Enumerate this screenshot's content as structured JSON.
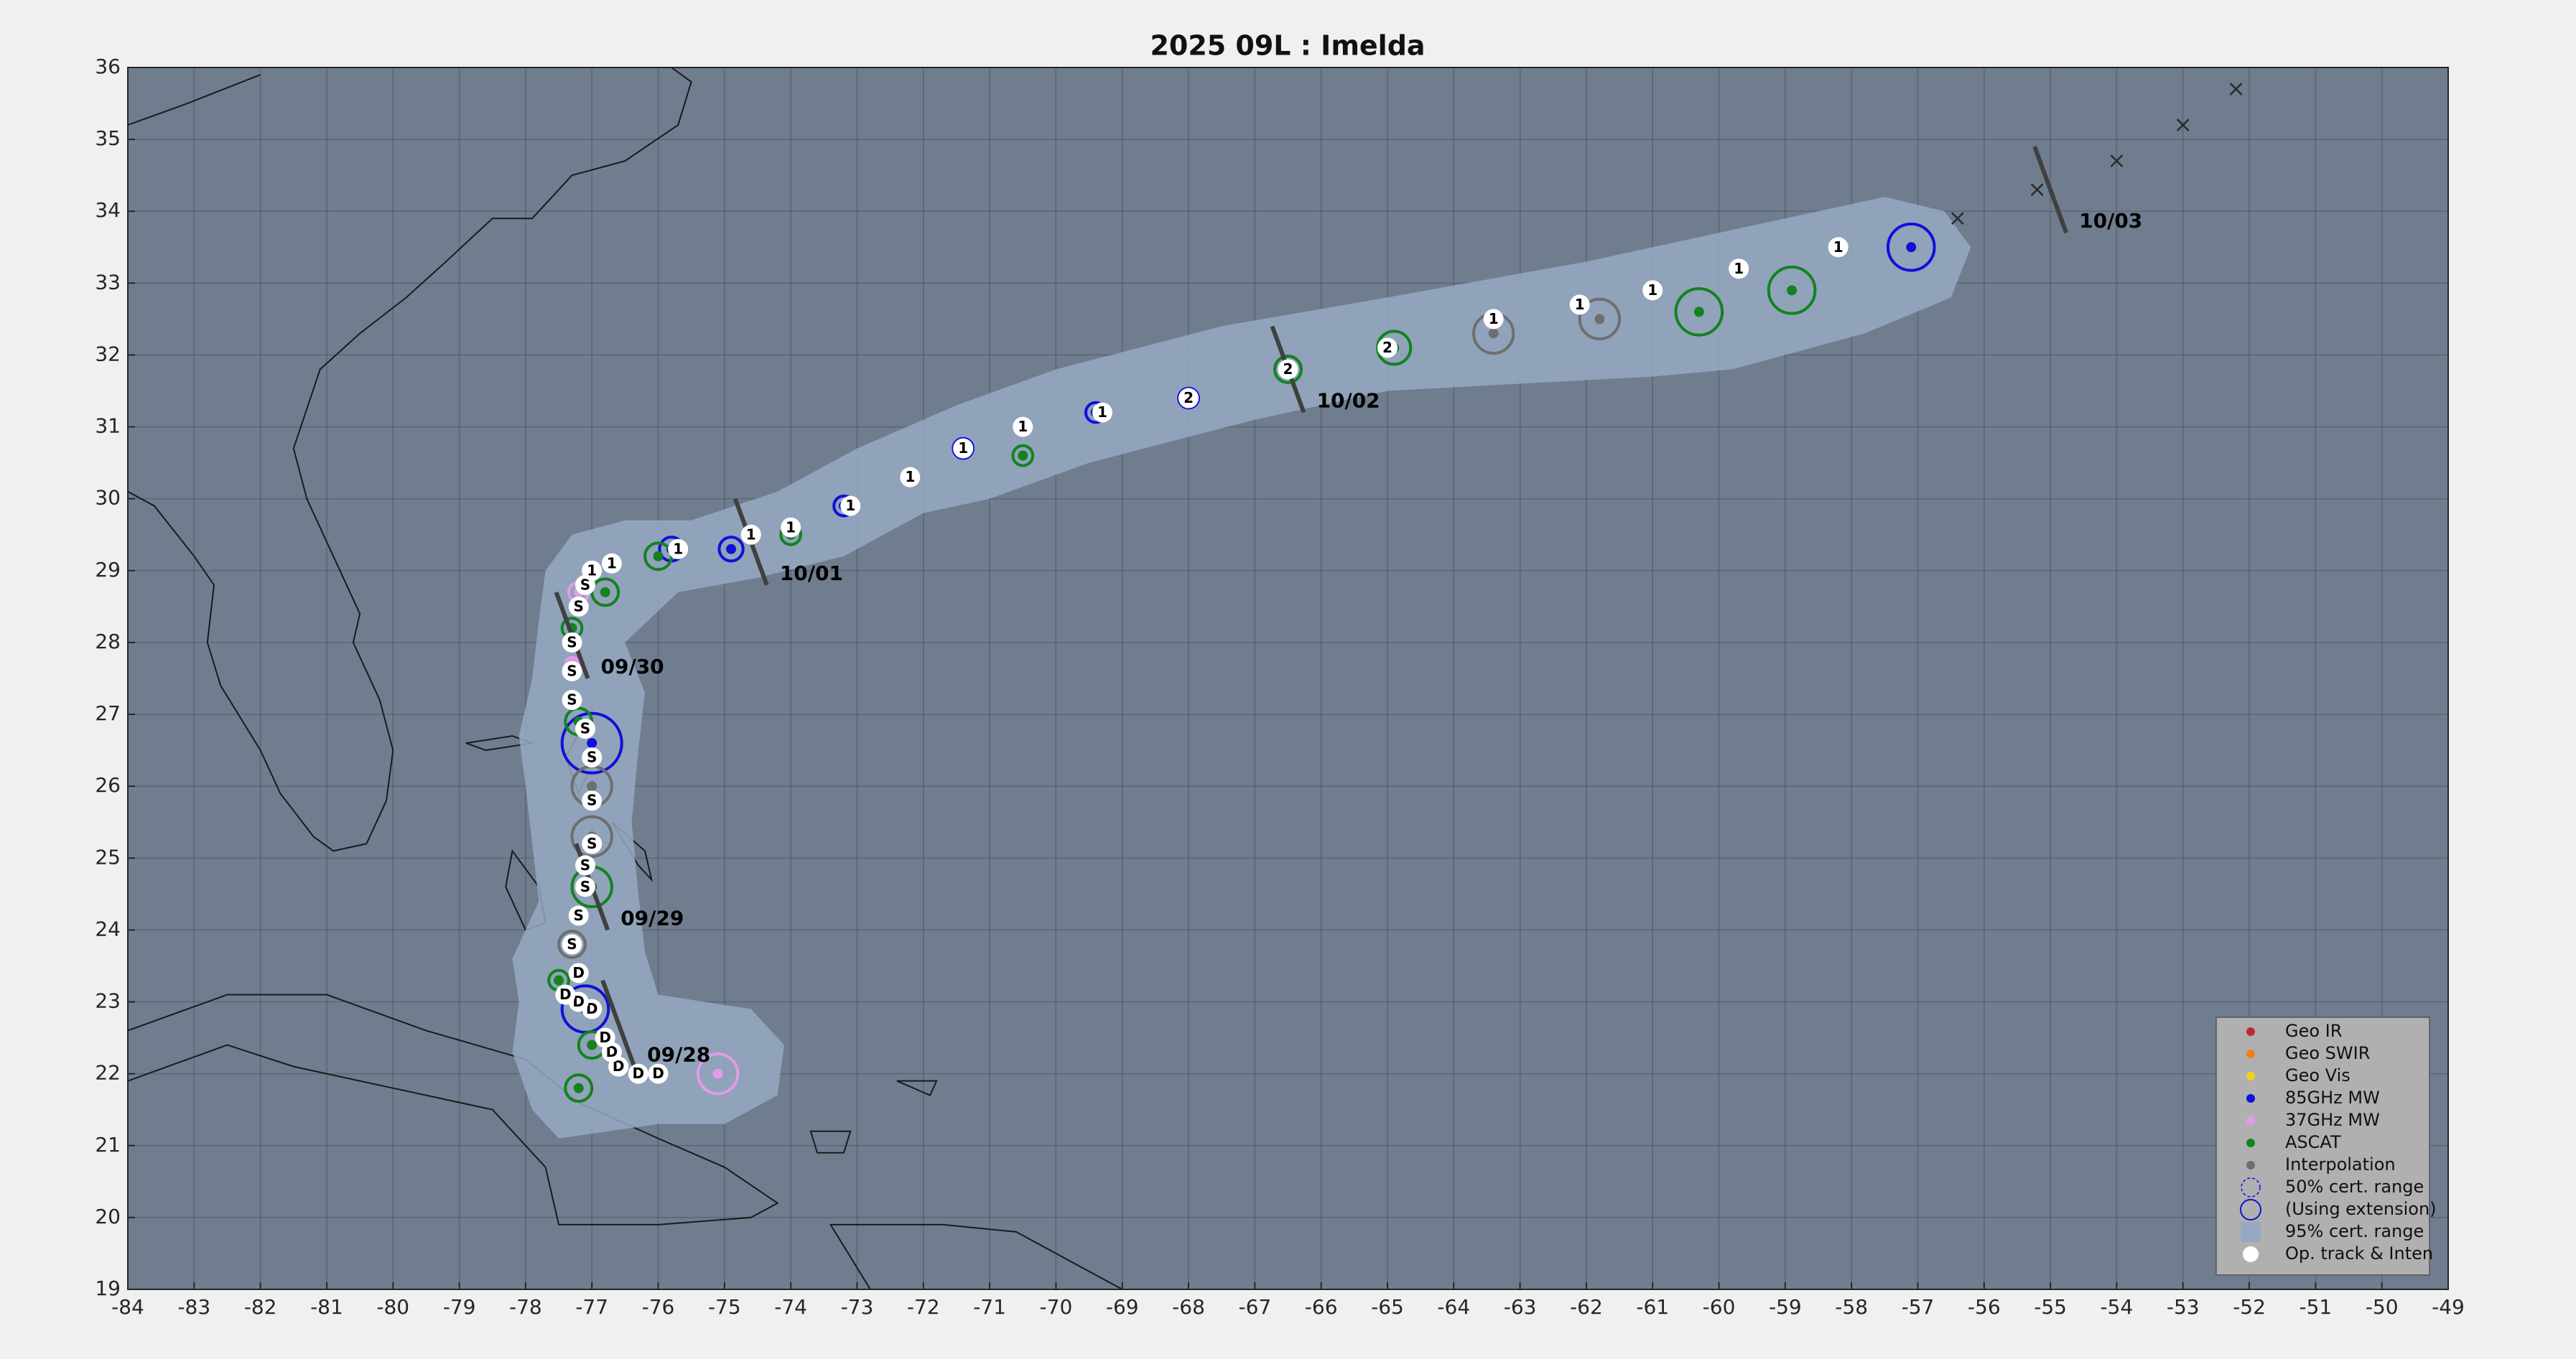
{
  "chart_data": {
    "type": "track",
    "title": "2025  09L :  Imelda",
    "xlim": [
      -84,
      -49
    ],
    "ylim": [
      19,
      36
    ],
    "xticks": [
      -84,
      -83,
      -82,
      -81,
      -80,
      -79,
      -78,
      -77,
      -76,
      -75,
      -74,
      -73,
      -72,
      -71,
      -70,
      -69,
      -68,
      -67,
      -66,
      -65,
      -64,
      -63,
      -62,
      -61,
      -60,
      -59,
      -58,
      -57,
      -56,
      -55,
      -54,
      -53,
      -52,
      -51,
      -50,
      -49
    ],
    "yticks": [
      19,
      20,
      21,
      22,
      23,
      24,
      25,
      26,
      27,
      28,
      29,
      30,
      31,
      32,
      33,
      34,
      35,
      36
    ],
    "grid": true,
    "legend": "lower right",
    "cone": {
      "name": "95% cert. range",
      "color": "#97a9c2",
      "x": [
        -77.5,
        -76.0,
        -75.0,
        -74.2,
        -74.1,
        -74.6,
        -76.0,
        -76.2,
        -76.3,
        -76.4,
        -76.3,
        -76.2,
        -76.5,
        -75.7,
        -74.5,
        -73.2,
        -72.0,
        -71.0,
        -69.5,
        -67.0,
        -65.0,
        -63.0,
        -61.0,
        -59.8,
        -57.8,
        -56.5,
        -56.2,
        -56.6,
        -57.5,
        -59.0,
        -62.0,
        -65.0,
        -67.5,
        -70.0,
        -71.5,
        -73.0,
        -74.2,
        -75.5,
        -76.5,
        -77.3,
        -77.7,
        -77.8,
        -77.9,
        -78.1,
        -78.0,
        -77.9,
        -77.8,
        -78.2,
        -78.1,
        -78.2,
        -77.9
      ],
      "y": [
        21.1,
        21.3,
        21.3,
        21.7,
        22.4,
        22.9,
        23.1,
        23.7,
        24.5,
        25.5,
        26.5,
        27.3,
        28.0,
        28.7,
        28.9,
        29.2,
        29.8,
        30.0,
        30.5,
        31.1,
        31.5,
        31.6,
        31.7,
        31.8,
        32.3,
        32.8,
        33.5,
        34.0,
        34.2,
        33.9,
        33.3,
        32.8,
        32.4,
        31.8,
        31.3,
        30.7,
        30.1,
        29.7,
        29.7,
        29.5,
        29.0,
        28.3,
        27.5,
        26.7,
        26.0,
        25.2,
        24.4,
        23.6,
        23.0,
        22.3,
        21.5
      ]
    },
    "cert_50": {
      "name": "50% cert. range"
    },
    "cert_ext": {
      "name": "(Using extension)"
    },
    "series": [
      {
        "name": "Geo IR",
        "color": "#c0282d",
        "x": [],
        "y": [],
        "r": []
      },
      {
        "name": "Geo SWIR",
        "color": "#f07f1e",
        "x": [],
        "y": [],
        "r": []
      },
      {
        "name": "Geo Vis",
        "color": "#f2d21b",
        "x": [],
        "y": [],
        "r": []
      },
      {
        "name": "85GHz MW",
        "color": "#1010d8",
        "x": [
          -77.0,
          -77.1,
          -75.8,
          -74.9,
          -73.2,
          -71.4,
          -69.4,
          -68.0,
          -57.1
        ],
        "y": [
          26.6,
          22.9,
          29.3,
          29.3,
          29.9,
          30.7,
          31.2,
          31.4,
          33.5
        ],
        "r": [
          0.45,
          0.35,
          0.18,
          0.18,
          0.15,
          0.15,
          0.15,
          0.15,
          0.35
        ]
      },
      {
        "name": "37GHz MW",
        "color": "#e29be8",
        "x": [
          -75.1,
          -77.2,
          -77.3
        ],
        "y": [
          22.0,
          28.7,
          27.7
        ],
        "r": [
          0.3,
          0.15,
          0.1
        ]
      },
      {
        "name": "ASCAT",
        "color": "#13821f",
        "x": [
          -77.0,
          -77.2,
          -77.3,
          -76.8,
          -76.0,
          -74.0,
          -70.5,
          -66.5,
          -64.9,
          -60.3,
          -58.9,
          -77.2,
          -77.0,
          -77.5
        ],
        "y": [
          24.6,
          26.9,
          28.2,
          28.7,
          29.2,
          29.5,
          30.6,
          31.8,
          32.1,
          32.6,
          32.9,
          21.8,
          22.4,
          23.3
        ],
        "r": [
          0.3,
          0.2,
          0.15,
          0.2,
          0.2,
          0.15,
          0.15,
          0.2,
          0.25,
          0.35,
          0.35,
          0.2,
          0.2,
          0.15
        ]
      },
      {
        "name": "Interpolation",
        "color": "#6e6e6e",
        "x": [
          -77.0,
          -77.0,
          -63.4,
          -61.8,
          -77.3
        ],
        "y": [
          26.0,
          25.3,
          32.3,
          32.5,
          23.8
        ],
        "r": [
          0.3,
          0.3,
          0.3,
          0.3,
          0.2
        ]
      }
    ],
    "track": {
      "name": "Op. track & Inten",
      "color": "#ffffff",
      "x": [
        -76.0,
        -76.3,
        -76.6,
        -76.7,
        -76.8,
        -77.0,
        -77.2,
        -77.4,
        -77.2,
        -77.3,
        -77.2,
        -77.1,
        -77.1,
        -77.0,
        -77.0,
        -77.0,
        -77.1,
        -77.3,
        -77.3,
        -77.3,
        -77.2,
        -77.1,
        -77.0,
        -76.7,
        -75.7,
        -74.6,
        -74.0,
        -73.1,
        -72.2,
        -71.4,
        -70.5,
        -69.3,
        -68.0,
        -66.5,
        -65.0,
        -63.4,
        -62.1,
        -61.0,
        -59.7,
        -58.2
      ],
      "y": [
        22.0,
        22.0,
        22.1,
        22.3,
        22.5,
        22.9,
        23.0,
        23.1,
        23.4,
        23.8,
        24.2,
        24.6,
        24.9,
        25.2,
        25.8,
        26.4,
        26.8,
        27.2,
        27.6,
        28.0,
        28.5,
        28.8,
        29.0,
        29.1,
        29.3,
        29.5,
        29.6,
        29.9,
        30.3,
        30.7,
        31.0,
        31.2,
        31.4,
        31.8,
        32.1,
        32.5,
        32.7,
        32.9,
        33.2,
        33.5
      ],
      "labels": [
        "D",
        "D",
        "D",
        "D",
        "D",
        "D",
        "D",
        "D",
        "D",
        "S",
        "S",
        "S",
        "S",
        "S",
        "S",
        "S",
        "S",
        "S",
        "S",
        "S",
        "S",
        "S",
        "1",
        "1",
        "1",
        "1",
        "1",
        "1",
        "1",
        "1",
        "1",
        "1",
        "2",
        "2",
        "2",
        "1",
        "1",
        "1",
        "1",
        "1"
      ]
    },
    "forecast": {
      "x": [
        -56.4,
        -55.2,
        -54.0,
        -53.0,
        -52.2
      ],
      "y": [
        33.9,
        34.3,
        34.7,
        35.2,
        35.7
      ]
    },
    "annotations": [
      {
        "text": "09/28",
        "x": -76.6,
        "y": 22.7
      },
      {
        "text": "09/29",
        "x": -77.0,
        "y": 24.6
      },
      {
        "text": "09/30",
        "x": -77.3,
        "y": 28.1
      },
      {
        "text": "10/01",
        "x": -74.6,
        "y": 29.4
      },
      {
        "text": "10/02",
        "x": -66.5,
        "y": 31.8
      },
      {
        "text": "10/03",
        "x": -55.0,
        "y": 34.3
      }
    ]
  }
}
